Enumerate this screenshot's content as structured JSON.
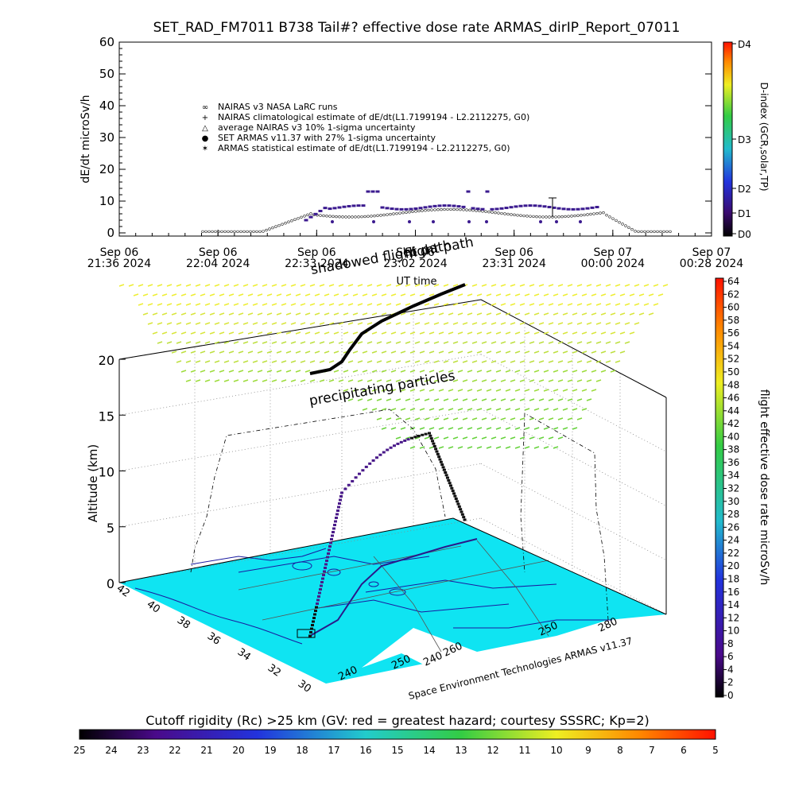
{
  "title": "SET_RAD_FM7011  B738 Tail#? effective dose rate ARMAS_dirIP_Report_07011",
  "chart_data": [
    {
      "type": "scatter",
      "ylabel": "dE/dt microSv/h",
      "xlabel": "UT time",
      "ylim": [
        0,
        60
      ],
      "yticks": [
        0,
        10,
        20,
        30,
        40,
        50,
        60
      ],
      "xticks": [
        {
          "date": "Sep 06",
          "time": "21:36 2024"
        },
        {
          "date": "Sep 06",
          "time": "22:04 2024"
        },
        {
          "date": "Sep 06",
          "time": "22:33 2024"
        },
        {
          "date": "Sep 06",
          "time": "23:02 2024"
        },
        {
          "date": "Sep 06",
          "time": "23:31 2024"
        },
        {
          "date": "Sep 07",
          "time": "00:00 2024"
        },
        {
          "date": "Sep 07",
          "time": "00:28 2024"
        }
      ],
      "legend": [
        "NAIRAS v3 NASA LaRC runs",
        "NAIRAS climatological estimate of dE/dt(L1.7199194 - L2.2112275, G0)",
        "average NAIRAS v3 10% 1-sigma uncertainty",
        "SET ARMAS v11.37 with 27% 1-sigma uncertainty",
        "ARMAS statistical estimate of dE/dt(L1.7199194 - L2.2112275, G0)"
      ],
      "legend_position": "upper-left",
      "series_colors": {
        "nairas": "#222222",
        "armas": "#3b1a8f"
      },
      "dindex_scale": {
        "title": "D-index (GCR,solar,TP)",
        "labels": [
          "D4",
          "D3",
          "D2",
          "D1",
          "D0"
        ]
      }
    },
    {
      "type": "area",
      "ylabel": "Altitude (km)",
      "zticks": [
        0,
        5,
        10,
        15,
        20
      ],
      "lat_ticks": [
        "42",
        "40",
        "38",
        "36",
        "34",
        "32",
        "30"
      ],
      "lon_ticks": [
        "240",
        "250",
        "260",
        "240",
        "250",
        "280"
      ],
      "annotations": [
        "precipitating particles",
        "shadowed flight path",
        "flight path",
        "Space Environment Technologies ARMAS v11.37"
      ],
      "dose_colorbar": {
        "title": "flight effective dose rate microSv/h",
        "ticks": [
          "64",
          "62",
          "60",
          "58",
          "56",
          "54",
          "52",
          "50",
          "48",
          "46",
          "44",
          "42",
          "40",
          "38",
          "36",
          "34",
          "32",
          "30",
          "28",
          "26",
          "24",
          "22",
          "20",
          "18",
          "16",
          "14",
          "12",
          "10",
          "8",
          "6",
          "4",
          "2",
          "0"
        ]
      }
    }
  ],
  "cutoff": {
    "title": "Cutoff rigidity (Rc) >25 km (GV: red = greatest hazard; courtesy SSSRC; Kp=2)",
    "ticks": [
      "25",
      "24",
      "23",
      "22",
      "21",
      "20",
      "19",
      "18",
      "17",
      "16",
      "15",
      "14",
      "13",
      "12",
      "11",
      "10",
      "9",
      "8",
      "7",
      "6",
      "5"
    ]
  }
}
